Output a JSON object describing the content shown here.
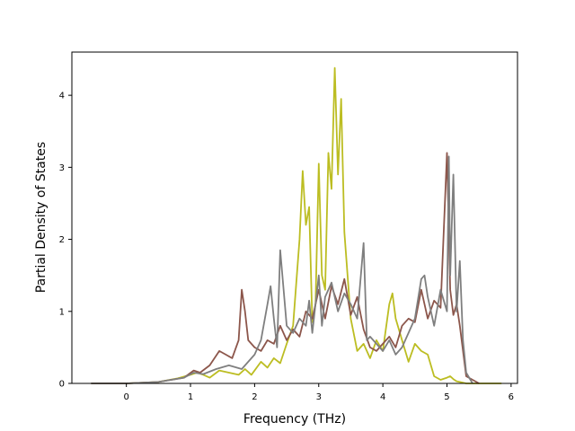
{
  "chart_data": {
    "type": "line",
    "xlabel": "Frequency (THz)",
    "ylabel": "Partial Density of States",
    "xlim": [
      -0.85,
      6.1
    ],
    "ylim": [
      0,
      4.6
    ],
    "xticks": [
      0,
      1,
      2,
      3,
      4,
      5,
      6
    ],
    "yticks": [
      0,
      1,
      2,
      3,
      4
    ],
    "grid": false,
    "legend": "none",
    "series": [
      {
        "color": "#bcbd22",
        "x": [
          -0.55,
          0,
          0.5,
          0.8,
          1.0,
          1.1,
          1.2,
          1.3,
          1.45,
          1.6,
          1.75,
          1.85,
          1.95,
          2.0,
          2.1,
          2.2,
          2.3,
          2.4,
          2.5,
          2.6,
          2.7,
          2.75,
          2.8,
          2.85,
          2.9,
          2.95,
          3.0,
          3.05,
          3.1,
          3.15,
          3.2,
          3.25,
          3.3,
          3.35,
          3.4,
          3.5,
          3.6,
          3.7,
          3.8,
          3.9,
          4.0,
          4.1,
          4.15,
          4.2,
          4.3,
          4.4,
          4.5,
          4.6,
          4.7,
          4.8,
          4.9,
          5.0,
          5.05,
          5.1,
          5.15,
          5.2,
          5.3,
          5.5,
          5.85
        ],
        "values": [
          0,
          0,
          0.02,
          0.07,
          0.12,
          0.15,
          0.12,
          0.08,
          0.18,
          0.15,
          0.12,
          0.2,
          0.12,
          0.18,
          0.3,
          0.22,
          0.35,
          0.28,
          0.55,
          0.8,
          2.0,
          2.95,
          2.2,
          2.45,
          0.85,
          1.1,
          3.05,
          1.5,
          1.3,
          3.2,
          2.7,
          4.38,
          2.9,
          3.95,
          2.1,
          0.9,
          0.45,
          0.55,
          0.35,
          0.6,
          0.45,
          1.1,
          1.25,
          0.9,
          0.6,
          0.3,
          0.55,
          0.45,
          0.4,
          0.1,
          0.05,
          0.08,
          0.1,
          0.06,
          0.03,
          0.02,
          0,
          0,
          0
        ]
      },
      {
        "color": "#8c564b",
        "x": [
          -0.55,
          0,
          0.5,
          0.9,
          1.05,
          1.15,
          1.3,
          1.45,
          1.55,
          1.65,
          1.75,
          1.8,
          1.85,
          1.9,
          2.0,
          2.1,
          2.2,
          2.3,
          2.4,
          2.5,
          2.6,
          2.7,
          2.8,
          2.9,
          3.0,
          3.1,
          3.2,
          3.3,
          3.4,
          3.5,
          3.6,
          3.7,
          3.8,
          3.9,
          4.0,
          4.1,
          4.2,
          4.3,
          4.4,
          4.5,
          4.6,
          4.7,
          4.8,
          4.9,
          5.0,
          5.05,
          5.1,
          5.15,
          5.2,
          5.3,
          5.5
        ],
        "values": [
          0,
          0,
          0.02,
          0.08,
          0.18,
          0.15,
          0.25,
          0.45,
          0.4,
          0.35,
          0.6,
          1.3,
          1.0,
          0.6,
          0.5,
          0.45,
          0.6,
          0.55,
          0.8,
          0.6,
          0.75,
          0.65,
          1.0,
          0.9,
          1.3,
          0.9,
          1.35,
          1.1,
          1.45,
          0.95,
          1.2,
          0.75,
          0.5,
          0.45,
          0.55,
          0.65,
          0.5,
          0.8,
          0.9,
          0.85,
          1.3,
          0.9,
          1.15,
          1.05,
          3.2,
          1.3,
          0.95,
          1.1,
          0.8,
          0.1,
          0
        ]
      },
      {
        "color": "#7f7f7f",
        "x": [
          -0.55,
          0,
          0.5,
          0.9,
          1.05,
          1.2,
          1.4,
          1.6,
          1.8,
          2.0,
          2.1,
          2.2,
          2.25,
          2.3,
          2.35,
          2.4,
          2.5,
          2.6,
          2.7,
          2.8,
          2.85,
          2.9,
          3.0,
          3.05,
          3.1,
          3.2,
          3.3,
          3.4,
          3.5,
          3.6,
          3.7,
          3.75,
          3.8,
          3.9,
          4.0,
          4.1,
          4.2,
          4.3,
          4.4,
          4.5,
          4.6,
          4.65,
          4.7,
          4.8,
          4.9,
          5.0,
          5.03,
          5.05,
          5.1,
          5.15,
          5.2,
          5.25,
          5.3,
          5.4
        ],
        "values": [
          0,
          0,
          0.02,
          0.08,
          0.15,
          0.13,
          0.2,
          0.25,
          0.2,
          0.4,
          0.6,
          1.1,
          1.35,
          0.9,
          0.5,
          1.85,
          0.8,
          0.7,
          0.9,
          0.8,
          1.15,
          0.7,
          1.5,
          0.8,
          1.2,
          1.4,
          1.0,
          1.25,
          1.1,
          0.9,
          1.95,
          0.6,
          0.65,
          0.55,
          0.45,
          0.6,
          0.4,
          0.5,
          0.7,
          0.9,
          1.45,
          1.5,
          1.2,
          0.8,
          1.3,
          1.0,
          3.15,
          1.5,
          2.9,
          1.0,
          1.7,
          0.6,
          0.15,
          0
        ]
      }
    ]
  }
}
